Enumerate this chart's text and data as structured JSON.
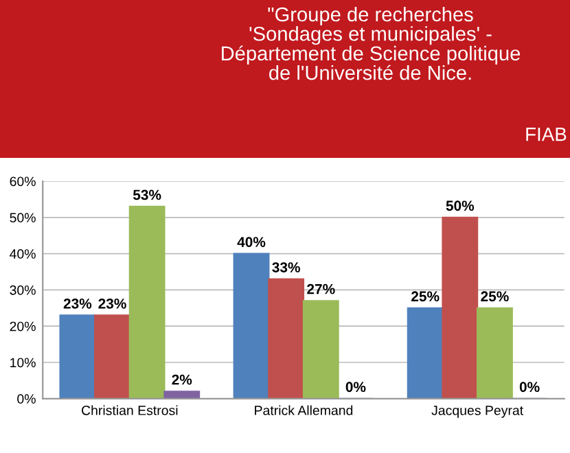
{
  "chart_data": {
    "type": "bar",
    "title": "\"Groupe de recherches\n'Sondages et municipales' -\nDépartement de Science politique\nde l'Université de Nice.",
    "annotations": [
      "FIAB"
    ],
    "categories": [
      "Christian Estrosi",
      "Patrick Allemand",
      "Jacques Peyrat"
    ],
    "series": [
      {
        "color": "#4f81bd",
        "values": [
          23,
          40,
          25
        ],
        "value_labels": [
          "23%",
          "40%",
          "25%"
        ]
      },
      {
        "color": "#c0504d",
        "values": [
          23,
          33,
          50
        ],
        "value_labels": [
          "23%",
          "33%",
          "50%"
        ]
      },
      {
        "color": "#9bbb59",
        "values": [
          53,
          27,
          25
        ],
        "value_labels": [
          "53%",
          "27%",
          "25%"
        ]
      },
      {
        "color": "#8064a2",
        "values": [
          2,
          0,
          0
        ],
        "value_labels": [
          "2%",
          "0%",
          "0%"
        ]
      }
    ],
    "ylim": [
      0,
      60
    ],
    "yticks": [
      {
        "value": 0,
        "label": "0%"
      },
      {
        "value": 10,
        "label": "10%"
      },
      {
        "value": 20,
        "label": "20%"
      },
      {
        "value": 30,
        "label": "30%"
      },
      {
        "value": 40,
        "label": "40%"
      },
      {
        "value": 50,
        "label": "50%"
      },
      {
        "value": 60,
        "label": "60%"
      }
    ],
    "grid": "y"
  }
}
